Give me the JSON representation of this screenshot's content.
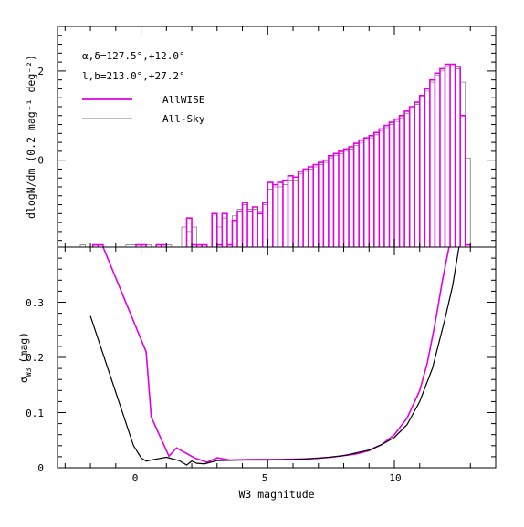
{
  "figure": {
    "colors": {
      "allwise": "#e100e1",
      "allsky": "#808080",
      "axes": "#000000"
    },
    "annotations": {
      "coord1": "α,δ=127.5°,+12.0°",
      "coord2": "l,b=213.0°,+27.2°"
    }
  },
  "chart_data": [
    {
      "type": "step-histogram",
      "panel": "top",
      "ylabel": "dlogN/dm (0.2 mag⁻¹ deg⁻²)",
      "xlim": [
        -3.3,
        14.0
      ],
      "ylim": [
        -1.95,
        3.0
      ],
      "yticks": [
        "0",
        "2"
      ],
      "ytick_values": [
        0,
        2
      ],
      "bin_width": 0.2,
      "legend": {
        "placement": "top-left",
        "entries": [
          "AllWISE",
          "All-Sky"
        ]
      },
      "series": [
        {
          "name": "AllWISE",
          "color": "#e100e1",
          "bins": [
            [
              -1.8,
              -1.9
            ],
            [
              -1.6,
              -1.9
            ],
            [
              -0.1,
              -1.9
            ],
            [
              0.1,
              -1.9
            ],
            [
              0.7,
              -1.9
            ],
            [
              0.9,
              -1.9
            ],
            [
              1.9,
              -1.3
            ],
            [
              2.1,
              -1.9
            ],
            [
              2.3,
              -1.9
            ],
            [
              2.5,
              -1.9
            ],
            [
              2.9,
              -1.2
            ],
            [
              3.1,
              -1.9
            ],
            [
              3.3,
              -1.2
            ],
            [
              3.5,
              -1.9
            ],
            [
              3.7,
              -1.35
            ],
            [
              3.9,
              -1.15
            ],
            [
              4.1,
              -0.95
            ],
            [
              4.3,
              -1.15
            ],
            [
              4.5,
              -1.05
            ],
            [
              4.7,
              -1.2
            ],
            [
              4.9,
              -0.95
            ],
            [
              5.1,
              -0.5
            ],
            [
              5.3,
              -0.55
            ],
            [
              5.5,
              -0.5
            ],
            [
              5.7,
              -0.45
            ],
            [
              5.9,
              -0.35
            ],
            [
              6.1,
              -0.38
            ],
            [
              6.3,
              -0.25
            ],
            [
              6.5,
              -0.2
            ],
            [
              6.7,
              -0.15
            ],
            [
              6.9,
              -0.1
            ],
            [
              7.1,
              -0.05
            ],
            [
              7.3,
              0.0
            ],
            [
              7.5,
              0.1
            ],
            [
              7.7,
              0.15
            ],
            [
              7.9,
              0.2
            ],
            [
              8.1,
              0.25
            ],
            [
              8.3,
              0.3
            ],
            [
              8.5,
              0.38
            ],
            [
              8.7,
              0.45
            ],
            [
              8.9,
              0.5
            ],
            [
              9.1,
              0.55
            ],
            [
              9.3,
              0.62
            ],
            [
              9.5,
              0.7
            ],
            [
              9.7,
              0.78
            ],
            [
              9.9,
              0.85
            ],
            [
              10.1,
              0.92
            ],
            [
              10.3,
              1.0
            ],
            [
              10.5,
              1.1
            ],
            [
              10.7,
              1.2
            ],
            [
              10.9,
              1.3
            ],
            [
              11.1,
              1.45
            ],
            [
              11.3,
              1.6
            ],
            [
              11.5,
              1.8
            ],
            [
              11.7,
              1.95
            ],
            [
              11.9,
              2.05
            ],
            [
              12.1,
              2.15
            ],
            [
              12.3,
              2.15
            ],
            [
              12.5,
              2.1
            ],
            [
              12.7,
              1.0
            ],
            [
              12.9,
              -1.9
            ]
          ]
        },
        {
          "name": "All-Sky",
          "color": "#808080",
          "bins": [
            [
              -2.3,
              -1.9
            ],
            [
              -0.5,
              -1.9
            ],
            [
              -0.3,
              -1.9
            ],
            [
              0.3,
              -1.9
            ],
            [
              0.9,
              -1.9
            ],
            [
              1.1,
              -1.9
            ],
            [
              1.7,
              -1.5
            ],
            [
              1.9,
              -1.6
            ],
            [
              2.1,
              -1.5
            ],
            [
              2.5,
              -1.9
            ],
            [
              3.1,
              -1.5
            ],
            [
              3.3,
              -1.3
            ],
            [
              3.5,
              -1.9
            ],
            [
              3.7,
              -1.25
            ],
            [
              3.9,
              -1.1
            ],
            [
              4.1,
              -1.0
            ],
            [
              4.3,
              -1.1
            ],
            [
              4.5,
              -1.1
            ],
            [
              4.7,
              -1.15
            ],
            [
              4.9,
              -1.0
            ],
            [
              5.1,
              -0.65
            ],
            [
              5.3,
              -0.6
            ],
            [
              5.5,
              -0.6
            ],
            [
              5.7,
              -0.55
            ],
            [
              5.9,
              -0.45
            ],
            [
              6.1,
              -0.45
            ],
            [
              6.3,
              -0.3
            ],
            [
              6.5,
              -0.25
            ],
            [
              6.7,
              -0.2
            ],
            [
              6.9,
              -0.15
            ],
            [
              7.1,
              -0.1
            ],
            [
              7.3,
              -0.05
            ],
            [
              7.5,
              0.05
            ],
            [
              7.7,
              0.1
            ],
            [
              7.9,
              0.15
            ],
            [
              8.1,
              0.2
            ],
            [
              8.3,
              0.25
            ],
            [
              8.5,
              0.33
            ],
            [
              8.7,
              0.4
            ],
            [
              8.9,
              0.45
            ],
            [
              9.1,
              0.5
            ],
            [
              9.3,
              0.57
            ],
            [
              9.5,
              0.65
            ],
            [
              9.7,
              0.73
            ],
            [
              9.9,
              0.8
            ],
            [
              10.1,
              0.87
            ],
            [
              10.3,
              0.95
            ],
            [
              10.5,
              1.05
            ],
            [
              10.7,
              1.15
            ],
            [
              10.9,
              1.25
            ],
            [
              11.1,
              1.4
            ],
            [
              11.3,
              1.55
            ],
            [
              11.5,
              1.75
            ],
            [
              11.7,
              1.9
            ],
            [
              11.9,
              2.0
            ],
            [
              12.1,
              2.1
            ],
            [
              12.3,
              2.15
            ],
            [
              12.5,
              2.05
            ],
            [
              12.7,
              1.75
            ],
            [
              12.9,
              0.05
            ]
          ]
        }
      ]
    },
    {
      "type": "line",
      "panel": "bottom",
      "xlabel": "W3 magnitude",
      "ylabel": "σW3 (mag)",
      "ylabel_main": "σ",
      "ylabel_sub": "W3",
      "ylabel_unit": "(mag)",
      "xlim": [
        -3.3,
        14.0
      ],
      "ylim": [
        0.0,
        0.4
      ],
      "xticks": [
        "0",
        "5",
        "10"
      ],
      "xtick_values": [
        0,
        5,
        10
      ],
      "yticks": [
        "0",
        "0.1",
        "0.2",
        "0.3"
      ],
      "ytick_values": [
        0,
        0.1,
        0.2,
        0.3
      ],
      "series": [
        {
          "name": "AllWISE",
          "color": "#e100e1",
          "x": [
            -1.5,
            0.2,
            0.4,
            1.1,
            1.4,
            2.1,
            2.6,
            3.0,
            3.5,
            4.5,
            5.5,
            6.5,
            7.5,
            8.5,
            9.0,
            9.5,
            10.0,
            10.5,
            11.0,
            11.3,
            11.6,
            11.9,
            12.2
          ],
          "y": [
            0.4,
            0.21,
            0.092,
            0.021,
            0.036,
            0.018,
            0.01,
            0.018,
            0.014,
            0.015,
            0.015,
            0.016,
            0.019,
            0.025,
            0.031,
            0.042,
            0.06,
            0.09,
            0.14,
            0.19,
            0.26,
            0.34,
            0.41
          ]
        },
        {
          "name": "All-Sky",
          "color": "#000000",
          "x": [
            -2.0,
            -0.3,
            0.0,
            0.2,
            0.5,
            1.0,
            1.5,
            1.8,
            2.0,
            2.2,
            2.5,
            3.0,
            4.0,
            5.0,
            6.0,
            7.0,
            8.0,
            9.0,
            9.5,
            10.0,
            10.5,
            11.0,
            11.5,
            12.0,
            12.3,
            12.55
          ],
          "y": [
            0.275,
            0.04,
            0.018,
            0.012,
            0.015,
            0.019,
            0.013,
            0.005,
            0.012,
            0.008,
            0.007,
            0.013,
            0.014,
            0.014,
            0.015,
            0.017,
            0.022,
            0.032,
            0.042,
            0.055,
            0.078,
            0.12,
            0.18,
            0.27,
            0.33,
            0.4
          ]
        }
      ]
    }
  ]
}
